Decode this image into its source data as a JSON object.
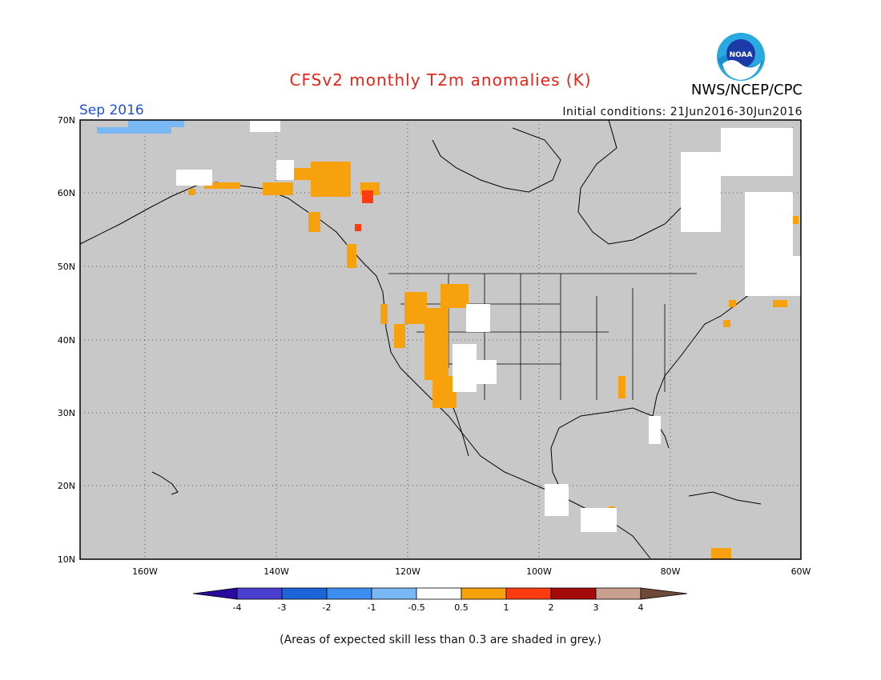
{
  "header": {
    "title": "CFSv2 monthly T2m anomalies (K)",
    "org": "NWS/NCEP/CPC",
    "logo_text": "NOAA",
    "month": "Sep 2016",
    "initial_conditions": "Initial conditions: 21Jun2016-30Jun2016"
  },
  "map": {
    "lat_labels": [
      "70N",
      "60N",
      "50N",
      "40N",
      "30N",
      "20N",
      "10N"
    ],
    "lon_labels": [
      "160W",
      "140W",
      "120W",
      "100W",
      "80W",
      "60W"
    ],
    "background_color": "#c8c8c8"
  },
  "colorbar": {
    "labels": [
      "-4",
      "-3",
      "-2",
      "-1",
      "-0.5",
      "0.5",
      "1",
      "2",
      "3",
      "4"
    ],
    "colors": [
      "#2a0a9c",
      "#4a3fd0",
      "#1c64d8",
      "#3c8ff0",
      "#7ab8f5",
      "#ffffff",
      "#f7a10c",
      "#ff3c0f",
      "#a50a0a",
      "#c9a08e",
      "#6e4a3a"
    ]
  },
  "footnote": "(Areas of expected skill less than 0.3 are shaded in grey.)"
}
